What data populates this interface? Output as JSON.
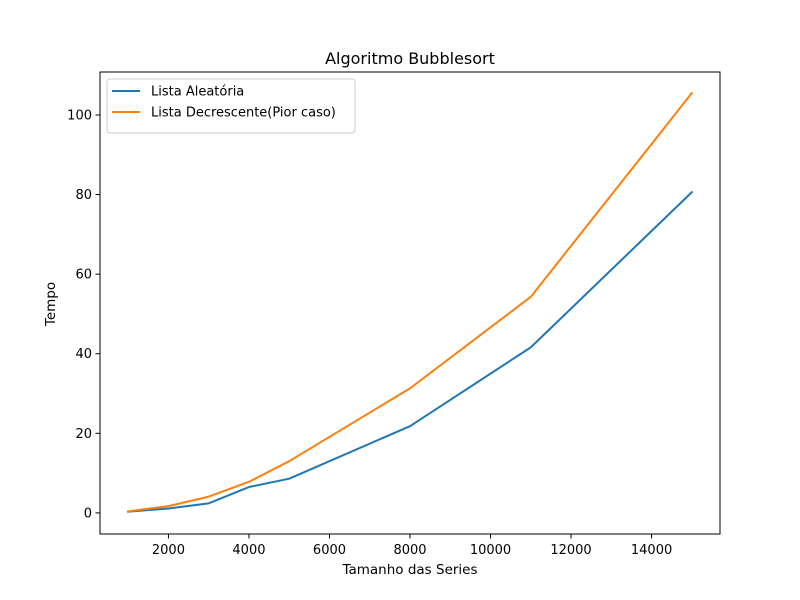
{
  "chart_data": {
    "type": "line",
    "title": "Algoritmo Bubblesort",
    "xlabel": "Tamanho das Series",
    "ylabel": "Tempo",
    "xlim": [
      300,
      15700
    ],
    "ylim": [
      -5.3,
      110.8
    ],
    "xticks": [
      2000,
      4000,
      6000,
      8000,
      10000,
      12000,
      14000
    ],
    "yticks": [
      0,
      20,
      40,
      60,
      80,
      100
    ],
    "grid": false,
    "legend_position": "top-left",
    "series": [
      {
        "name": "Lista Aleatória",
        "color": "#1f77b4",
        "x": [
          1000,
          2000,
          3000,
          4000,
          5000,
          8000,
          11000,
          15000
        ],
        "y": [
          0.3,
          1.1,
          2.4,
          6.5,
          8.6,
          21.8,
          41.6,
          80.6
        ]
      },
      {
        "name": "Lista Decrescente(Pior caso)",
        "color": "#ff7f0e",
        "x": [
          1000,
          2000,
          3000,
          4000,
          5000,
          8000,
          11000,
          15000
        ],
        "y": [
          0.4,
          1.7,
          4.1,
          7.8,
          13.0,
          31.3,
          54.3,
          105.5
        ]
      }
    ]
  }
}
